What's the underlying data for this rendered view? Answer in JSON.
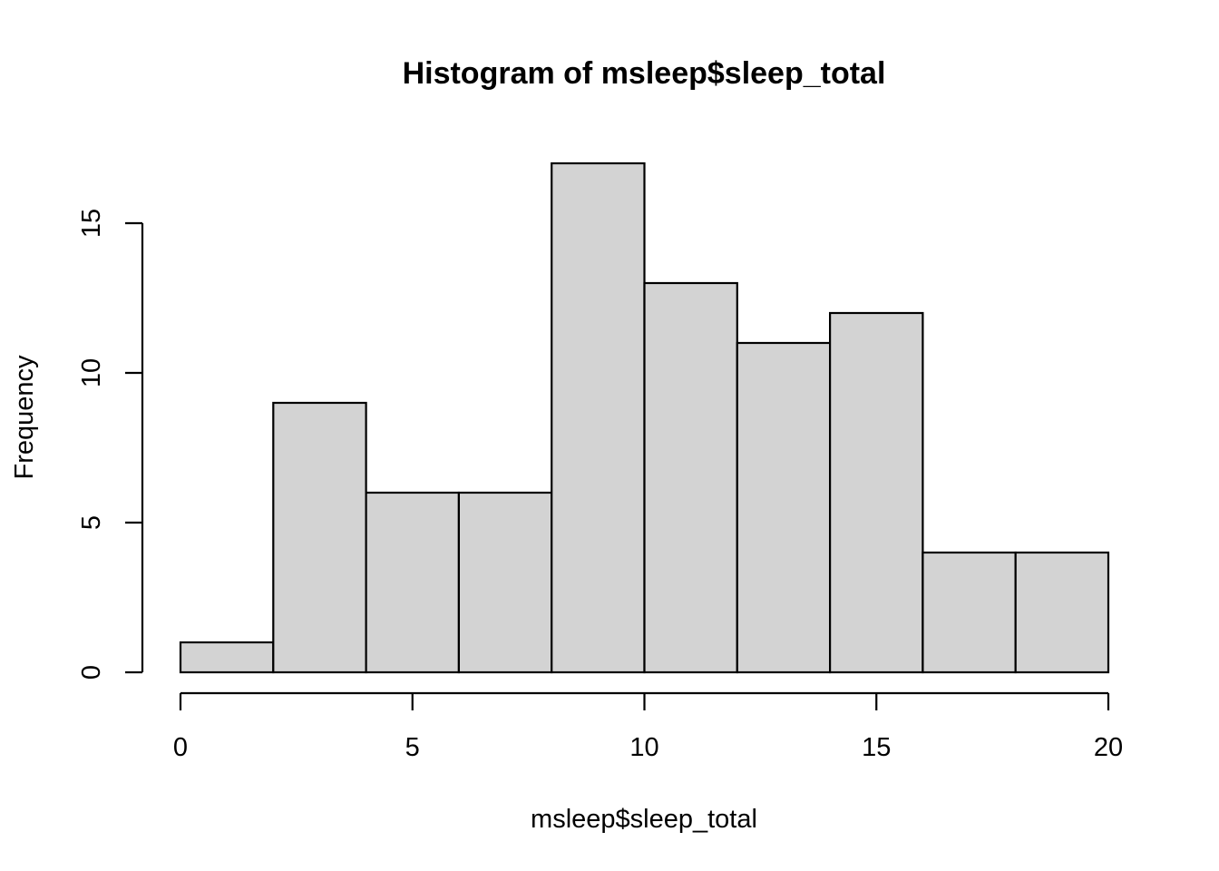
{
  "chart_data": {
    "type": "bar",
    "title": "Histogram of msleep$sleep_total",
    "xlabel": "msleep$sleep_total",
    "ylabel": "Frequency",
    "bin_edges": [
      0,
      2,
      4,
      6,
      8,
      10,
      12,
      14,
      16,
      18,
      20
    ],
    "values": [
      1,
      9,
      6,
      6,
      17,
      13,
      11,
      12,
      4,
      4
    ],
    "xlim": [
      0,
      20
    ],
    "ylim": [
      0,
      17
    ],
    "x_ticks": [
      0,
      5,
      10,
      15,
      20
    ],
    "y_ticks": [
      0,
      5,
      10,
      15
    ],
    "bar_color": "#d3d3d3",
    "grid": false,
    "legend": "none"
  }
}
